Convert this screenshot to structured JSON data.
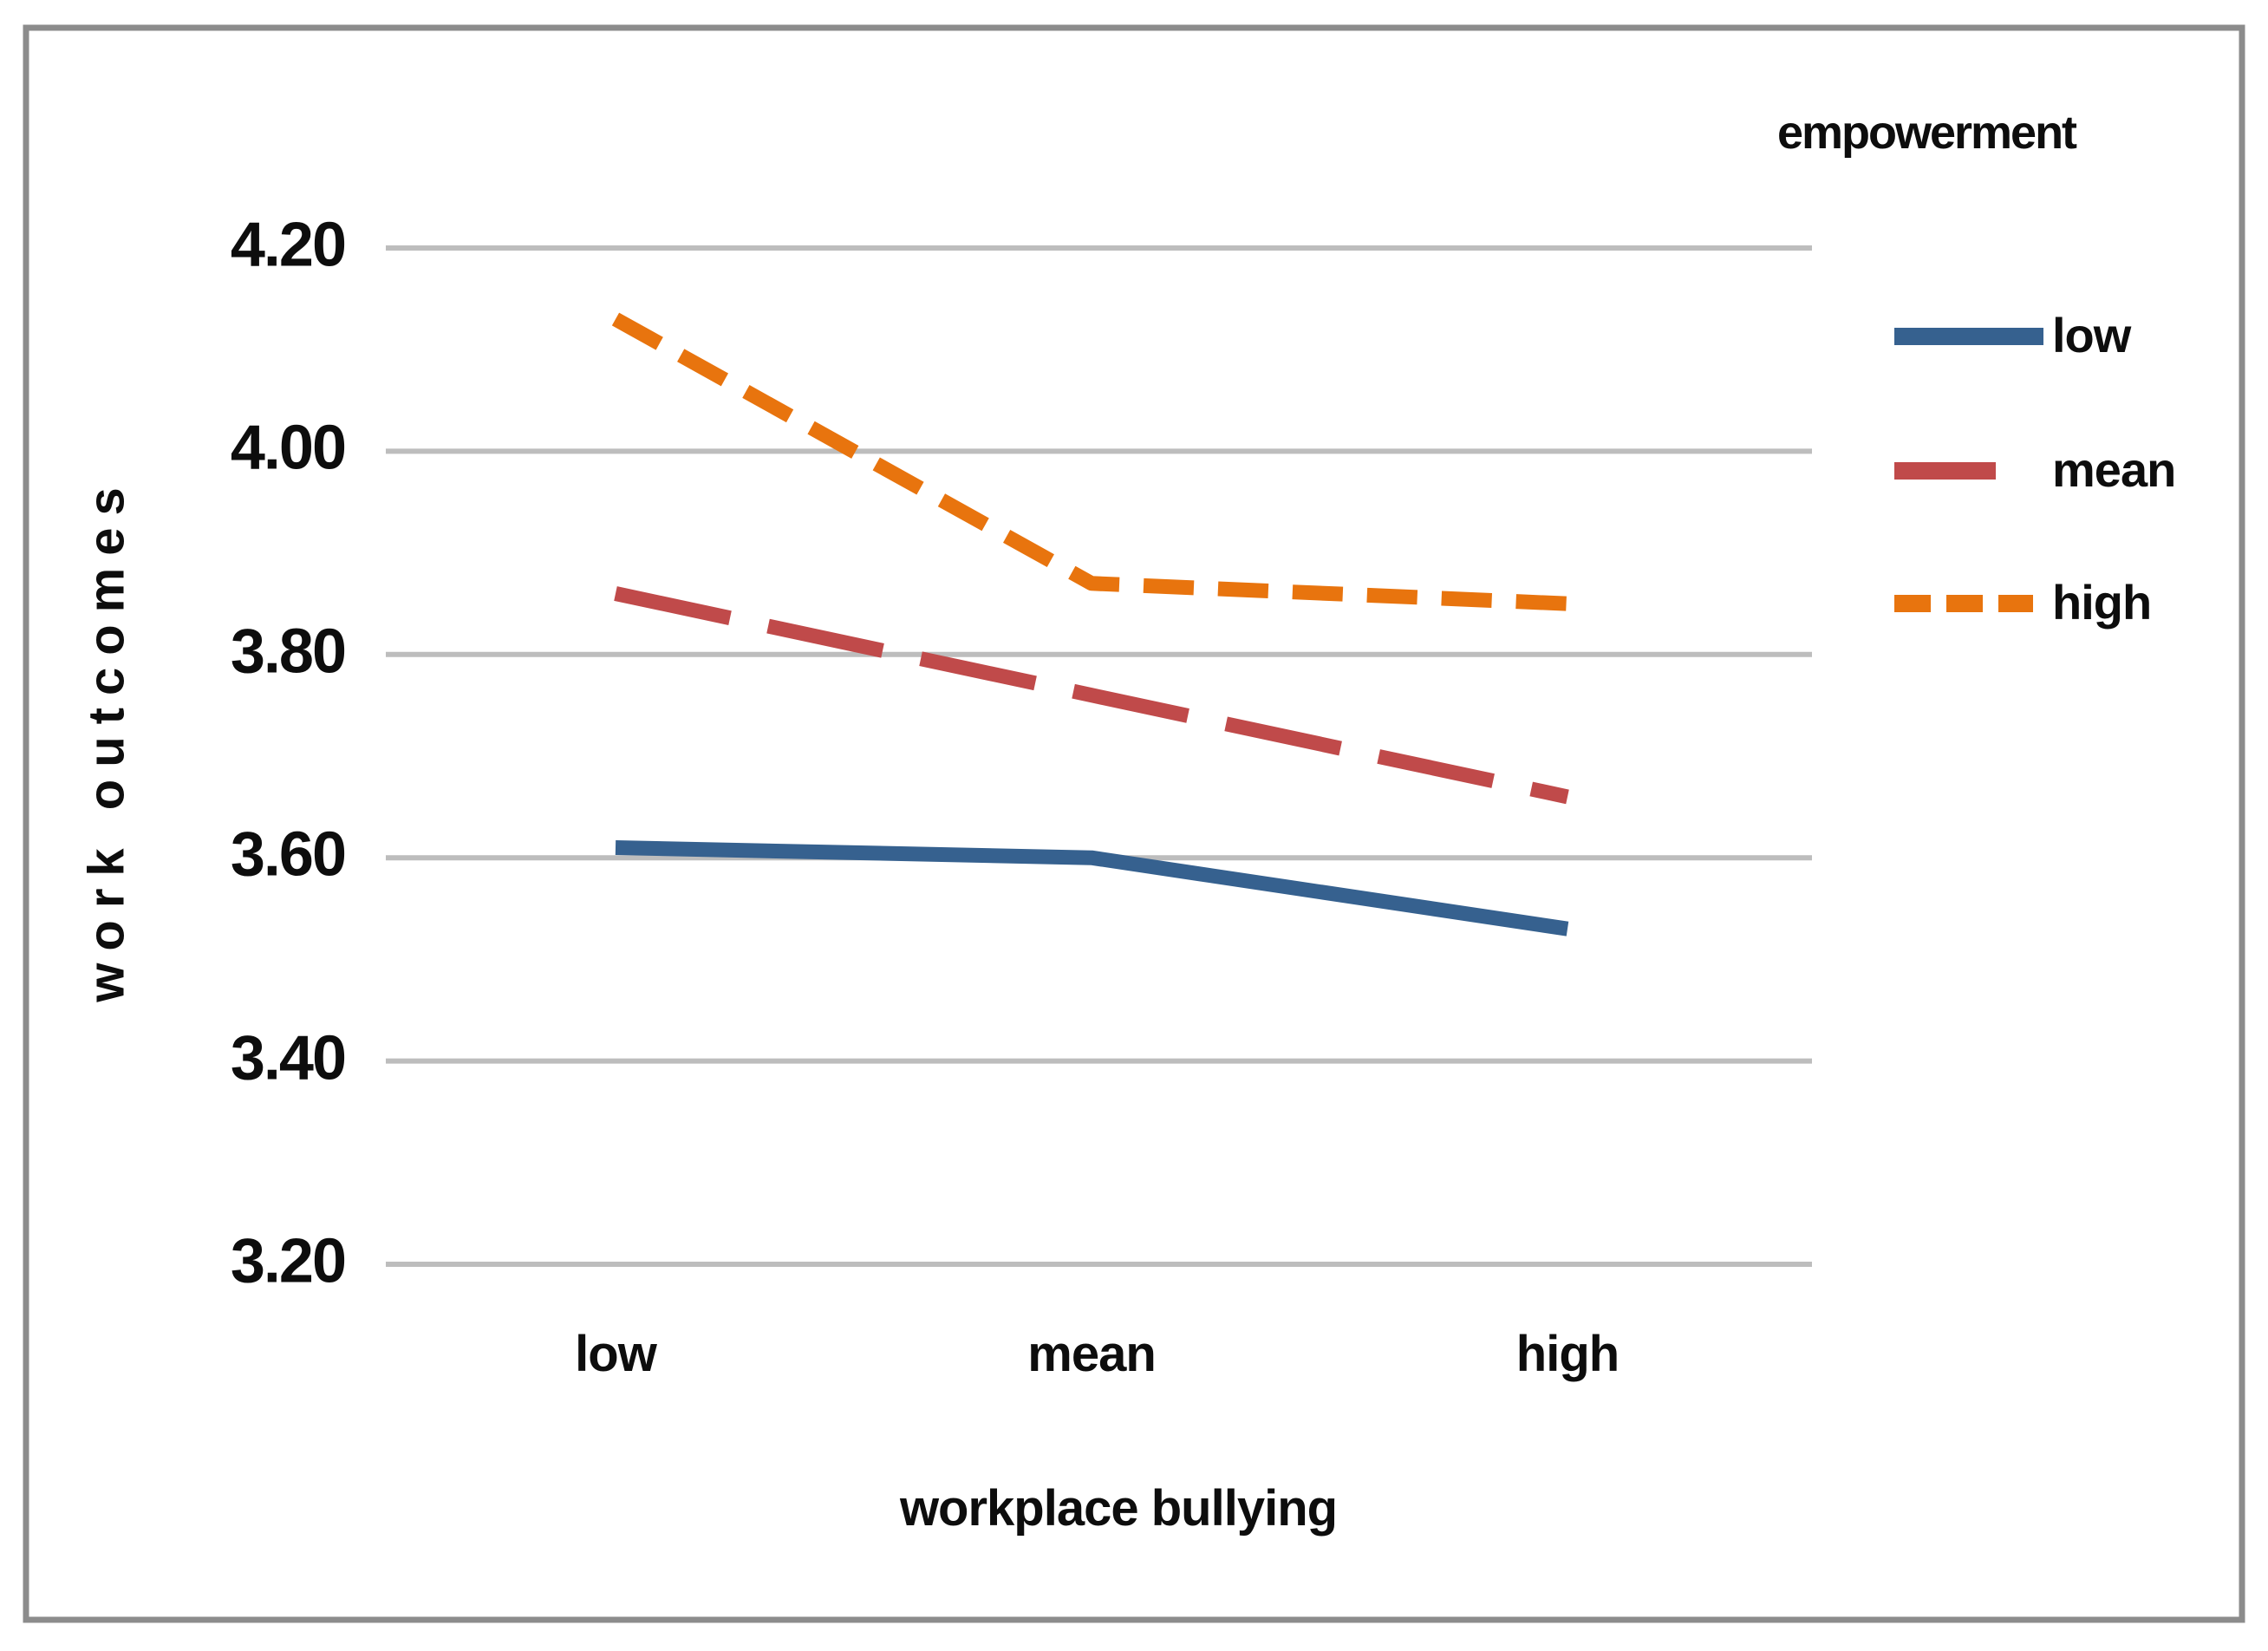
{
  "figure": {
    "background_color": "#ffffff",
    "border_color": "#8c8c8c",
    "gridline_color": "#bdbdbd",
    "text_color": "#0d0d0d"
  },
  "chart_data": {
    "type": "line",
    "title": "",
    "xlabel": "workplace bullying",
    "ylabel": "work outcomes",
    "categories": [
      "low",
      "mean",
      "high"
    ],
    "y_ticks": [
      {
        "label": "4.20",
        "value": 4.2
      },
      {
        "label": "4.00",
        "value": 4.0
      },
      {
        "label": "3.80",
        "value": 3.8
      },
      {
        "label": "3.60",
        "value": 3.6
      },
      {
        "label": "3.40",
        "value": 3.4
      },
      {
        "label": "3.20",
        "value": 3.2
      }
    ],
    "ylim": [
      3.2,
      4.2
    ],
    "grid": "horizontal-only",
    "legend_position": "right-top",
    "legend_title": "empowerment",
    "series": [
      {
        "name": "low",
        "color": "#36618f",
        "style": "solid",
        "values": [
          3.61,
          3.6,
          3.53
        ]
      },
      {
        "name": "mean",
        "color": "#c04a4a",
        "style": "long-dash",
        "values": [
          3.86,
          3.76,
          3.66
        ]
      },
      {
        "name": "high",
        "color": "#e8740e",
        "style": "short-dash",
        "values": [
          4.13,
          3.87,
          3.85
        ]
      }
    ]
  }
}
